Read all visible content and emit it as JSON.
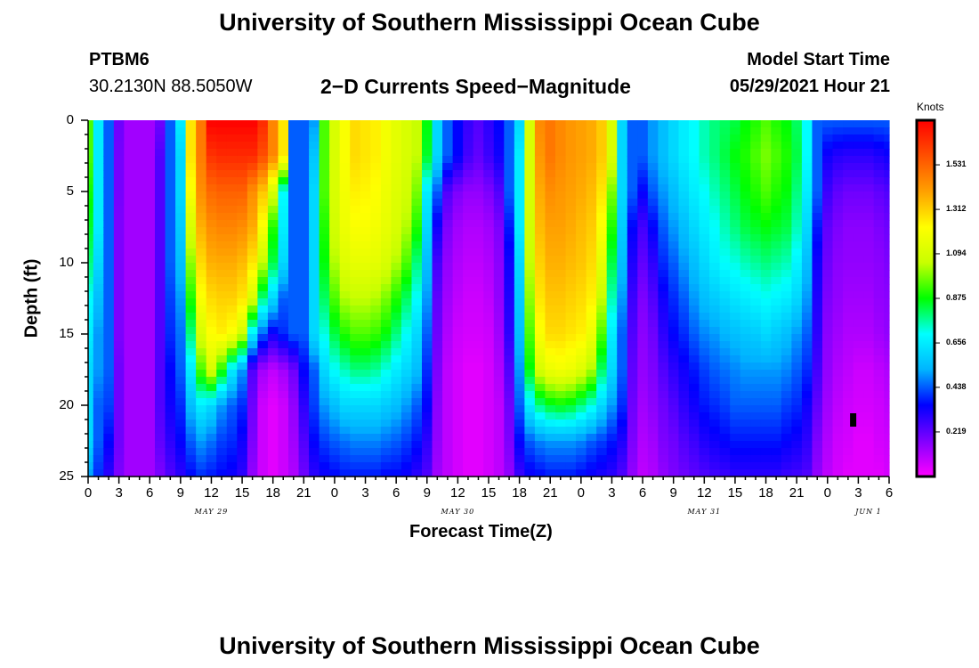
{
  "header": {
    "title_top": "University of Southern Mississippi Ocean Cube",
    "title_bottom": "University of Southern Mississippi Ocean Cube",
    "station_id": "PTBM6",
    "station_coords": "30.2130N  88.5050W",
    "plot_title": "2−D Currents Speed−Magnitude",
    "model_start_label": "Model Start Time",
    "model_start_value": "05/29/2021 Hour 21"
  },
  "colorbar": {
    "unit_label": "Knots",
    "tick_labels": [
      "1.531",
      "1.312",
      "1.094",
      "0.875",
      "0.656",
      "0.438",
      "0.219"
    ],
    "tick_values": [
      1.531,
      1.312,
      1.094,
      0.875,
      0.656,
      0.438,
      0.219
    ],
    "min": 0,
    "max": 1.75,
    "colors": [
      "#ff00ff",
      "#8000ff",
      "#0000ff",
      "#00b4ff",
      "#00ffff",
      "#00ff00",
      "#c8ff00",
      "#ffff00",
      "#ffa000",
      "#ff5000",
      "#ff0000"
    ]
  },
  "chart_data": {
    "type": "heatmap",
    "title": "2−D Currents Speed−Magnitude",
    "xlabel": "Forecast Time(Z)",
    "ylabel": "Depth (ft)",
    "x_unit": "hours from 05/29 00Z",
    "xlim": [
      0,
      78
    ],
    "ylim": [
      0,
      25
    ],
    "y_inverted": true,
    "y_ticks": [
      "0",
      "5",
      "10",
      "15",
      "20",
      "25"
    ],
    "x_tick_labels": [
      "0",
      "3",
      "6",
      "9",
      "12",
      "15",
      "18",
      "21",
      "0",
      "3",
      "6",
      "9",
      "12",
      "15",
      "18",
      "21",
      "0",
      "3",
      "6",
      "9",
      "12",
      "15",
      "18",
      "21",
      "0",
      "3",
      "6"
    ],
    "date_labels": [
      {
        "label": "MAY 29",
        "hour": 12
      },
      {
        "label": "MAY 30",
        "hour": 36
      },
      {
        "label": "MAY 31",
        "hour": 60
      },
      {
        "label": "JUN 1",
        "hour": 76
      }
    ],
    "depths_ft": [
      0,
      2.5,
      5,
      7.5,
      10,
      12.5,
      15,
      17.5,
      20,
      22.5,
      25
    ],
    "hours": [
      0,
      1,
      2,
      3,
      4,
      5,
      6,
      7,
      8,
      9,
      10,
      11,
      12,
      13,
      14,
      15,
      16,
      17,
      18,
      19,
      20,
      21,
      22,
      23,
      24,
      25,
      26,
      27,
      28,
      29,
      30,
      31,
      32,
      33,
      34,
      35,
      36,
      37,
      38,
      39,
      40,
      41,
      42,
      43,
      44,
      45,
      46,
      47,
      48,
      49,
      50,
      51,
      52,
      53,
      54,
      55,
      56,
      57,
      58,
      59,
      60,
      61,
      62,
      63,
      64,
      65,
      66,
      67,
      68,
      69,
      70,
      71,
      72,
      73,
      74,
      75,
      76,
      77,
      78
    ],
    "speed_knots": [
      [
        0.94,
        0.66,
        0.44,
        0.2,
        0.13,
        0.13,
        0.13,
        0.2,
        0.44,
        0.66,
        1.27,
        1.49,
        1.75,
        1.75,
        1.75,
        1.75,
        1.75,
        1.66,
        1.46,
        1.27,
        0.44,
        0.44,
        0.5,
        0.94,
        1.1,
        1.21,
        1.29,
        1.27,
        1.25,
        1.19,
        1.14,
        1.1,
        1.05,
        0.87,
        0.61,
        0.44,
        0.35,
        0.28,
        0.24,
        0.29,
        0.35,
        0.44,
        0.61,
        1.1,
        1.45,
        1.49,
        1.45,
        1.42,
        1.4,
        1.38,
        1.32,
        1.1,
        0.61,
        0.44,
        0.44,
        0.5,
        0.55,
        0.61,
        0.66,
        0.7,
        0.75,
        0.79,
        0.81,
        0.83,
        0.87,
        0.9,
        0.94,
        0.9,
        0.87,
        0.81,
        0.7,
        0.44,
        0.44,
        0.44,
        0.44,
        0.44,
        0.44,
        0.44,
        0.44
      ],
      [
        0.94,
        0.66,
        0.44,
        0.19,
        0.13,
        0.13,
        0.13,
        0.24,
        0.44,
        0.61,
        1.27,
        1.48,
        1.64,
        1.66,
        1.66,
        1.66,
        1.66,
        1.58,
        1.46,
        1.27,
        0.44,
        0.44,
        0.57,
        0.94,
        1.1,
        1.21,
        1.29,
        1.27,
        1.25,
        1.19,
        1.14,
        1.1,
        1.05,
        0.85,
        0.61,
        0.44,
        0.35,
        0.26,
        0.22,
        0.27,
        0.33,
        0.44,
        0.66,
        1.1,
        1.42,
        1.49,
        1.45,
        1.42,
        1.4,
        1.38,
        1.32,
        1.1,
        0.61,
        0.44,
        0.44,
        0.5,
        0.55,
        0.61,
        0.66,
        0.7,
        0.75,
        0.79,
        0.83,
        0.87,
        0.9,
        0.94,
        0.98,
        0.94,
        0.9,
        0.83,
        0.7,
        0.44,
        0.33,
        0.3,
        0.29,
        0.29,
        0.29,
        0.31,
        0.33
      ],
      [
        0.89,
        0.66,
        0.44,
        0.19,
        0.13,
        0.13,
        0.13,
        0.24,
        0.44,
        0.61,
        1.21,
        1.44,
        1.52,
        1.54,
        1.54,
        1.54,
        1.44,
        1.33,
        1.1,
        0.7,
        0.44,
        0.44,
        0.61,
        0.94,
        1.1,
        1.19,
        1.25,
        1.24,
        1.22,
        1.17,
        1.12,
        1.08,
        0.98,
        0.66,
        0.44,
        0.24,
        0.18,
        0.15,
        0.15,
        0.18,
        0.24,
        0.44,
        0.66,
        1.1,
        1.38,
        1.44,
        1.42,
        1.4,
        1.38,
        1.35,
        1.27,
        0.98,
        0.61,
        0.44,
        0.35,
        0.44,
        0.5,
        0.55,
        0.61,
        0.66,
        0.7,
        0.75,
        0.79,
        0.83,
        0.87,
        0.9,
        0.94,
        0.9,
        0.87,
        0.79,
        0.66,
        0.44,
        0.27,
        0.22,
        0.2,
        0.2,
        0.2,
        0.22,
        0.24
      ],
      [
        0.85,
        0.66,
        0.44,
        0.18,
        0.13,
        0.13,
        0.13,
        0.24,
        0.44,
        0.58,
        1.1,
        1.37,
        1.44,
        1.46,
        1.46,
        1.44,
        1.38,
        1.21,
        0.9,
        0.66,
        0.44,
        0.44,
        0.61,
        0.9,
        1.08,
        1.17,
        1.21,
        1.21,
        1.19,
        1.15,
        1.1,
        1.03,
        0.9,
        0.61,
        0.33,
        0.18,
        0.13,
        0.11,
        0.11,
        0.13,
        0.18,
        0.37,
        0.66,
        1.08,
        1.35,
        1.4,
        1.4,
        1.38,
        1.35,
        1.32,
        1.21,
        0.9,
        0.58,
        0.35,
        0.26,
        0.35,
        0.44,
        0.5,
        0.55,
        0.61,
        0.66,
        0.7,
        0.75,
        0.79,
        0.83,
        0.85,
        0.87,
        0.85,
        0.83,
        0.75,
        0.61,
        0.37,
        0.22,
        0.18,
        0.16,
        0.16,
        0.16,
        0.18,
        0.2
      ],
      [
        0.79,
        0.61,
        0.44,
        0.18,
        0.13,
        0.13,
        0.13,
        0.24,
        0.44,
        0.55,
        1.0,
        1.29,
        1.37,
        1.38,
        1.38,
        1.35,
        1.27,
        1.05,
        0.83,
        0.61,
        0.44,
        0.44,
        0.61,
        0.87,
        1.03,
        1.12,
        1.15,
        1.15,
        1.14,
        1.1,
        1.03,
        0.94,
        0.79,
        0.55,
        0.26,
        0.15,
        0.11,
        0.09,
        0.09,
        0.11,
        0.16,
        0.33,
        0.61,
        1.05,
        1.31,
        1.37,
        1.37,
        1.35,
        1.33,
        1.29,
        1.14,
        0.83,
        0.55,
        0.31,
        0.22,
        0.29,
        0.39,
        0.44,
        0.5,
        0.55,
        0.61,
        0.66,
        0.7,
        0.72,
        0.75,
        0.77,
        0.79,
        0.77,
        0.75,
        0.68,
        0.55,
        0.33,
        0.2,
        0.16,
        0.15,
        0.15,
        0.15,
        0.16,
        0.18
      ],
      [
        0.7,
        0.55,
        0.44,
        0.18,
        0.13,
        0.13,
        0.13,
        0.24,
        0.41,
        0.5,
        0.9,
        1.21,
        1.29,
        1.31,
        1.31,
        1.27,
        1.1,
        0.79,
        0.61,
        0.44,
        0.44,
        0.44,
        0.61,
        0.81,
        0.94,
        1.03,
        1.05,
        1.05,
        1.03,
        0.98,
        0.9,
        0.81,
        0.7,
        0.5,
        0.22,
        0.13,
        0.09,
        0.07,
        0.07,
        0.09,
        0.15,
        0.31,
        0.58,
        1.0,
        1.27,
        1.33,
        1.33,
        1.31,
        1.29,
        1.25,
        1.05,
        0.75,
        0.5,
        0.27,
        0.18,
        0.24,
        0.33,
        0.39,
        0.44,
        0.5,
        0.55,
        0.58,
        0.61,
        0.64,
        0.66,
        0.68,
        0.7,
        0.68,
        0.66,
        0.61,
        0.5,
        0.31,
        0.18,
        0.15,
        0.13,
        0.13,
        0.13,
        0.15,
        0.16
      ],
      [
        0.66,
        0.5,
        0.44,
        0.18,
        0.13,
        0.13,
        0.13,
        0.24,
        0.39,
        0.46,
        0.79,
        1.1,
        1.22,
        1.25,
        1.21,
        1.08,
        0.66,
        0.44,
        0.33,
        0.39,
        0.44,
        0.44,
        0.61,
        0.72,
        0.83,
        0.9,
        0.94,
        0.94,
        0.92,
        0.87,
        0.79,
        0.7,
        0.61,
        0.44,
        0.2,
        0.11,
        0.07,
        0.06,
        0.06,
        0.07,
        0.13,
        0.29,
        0.55,
        0.94,
        1.21,
        1.29,
        1.29,
        1.27,
        1.25,
        1.17,
        0.94,
        0.66,
        0.44,
        0.24,
        0.16,
        0.2,
        0.29,
        0.35,
        0.39,
        0.44,
        0.48,
        0.5,
        0.53,
        0.55,
        0.57,
        0.58,
        0.61,
        0.58,
        0.55,
        0.5,
        0.44,
        0.29,
        0.16,
        0.13,
        0.11,
        0.11,
        0.11,
        0.13,
        0.15
      ],
      [
        0.61,
        0.5,
        0.44,
        0.2,
        0.13,
        0.13,
        0.13,
        0.24,
        0.35,
        0.44,
        0.66,
        0.94,
        1.1,
        0.9,
        0.66,
        0.5,
        0.24,
        0.13,
        0.09,
        0.13,
        0.2,
        0.35,
        0.44,
        0.61,
        0.7,
        0.75,
        0.79,
        0.79,
        0.77,
        0.72,
        0.66,
        0.61,
        0.55,
        0.39,
        0.18,
        0.09,
        0.06,
        0.04,
        0.04,
        0.06,
        0.11,
        0.24,
        0.5,
        0.87,
        1.1,
        1.17,
        1.19,
        1.17,
        1.12,
        1.03,
        0.81,
        0.61,
        0.44,
        0.22,
        0.15,
        0.18,
        0.24,
        0.29,
        0.33,
        0.37,
        0.41,
        0.44,
        0.46,
        0.48,
        0.5,
        0.5,
        0.5,
        0.5,
        0.48,
        0.44,
        0.39,
        0.26,
        0.15,
        0.11,
        0.09,
        0.07,
        0.07,
        0.09,
        0.11
      ],
      [
        0.61,
        0.44,
        0.41,
        0.2,
        0.13,
        0.13,
        0.13,
        0.24,
        0.33,
        0.39,
        0.55,
        0.66,
        0.61,
        0.5,
        0.44,
        0.39,
        0.2,
        0.07,
        0.04,
        0.07,
        0.15,
        0.29,
        0.41,
        0.5,
        0.55,
        0.61,
        0.61,
        0.61,
        0.61,
        0.58,
        0.55,
        0.5,
        0.44,
        0.35,
        0.16,
        0.09,
        0.06,
        0.04,
        0.04,
        0.06,
        0.09,
        0.2,
        0.44,
        0.66,
        0.79,
        0.85,
        0.87,
        0.85,
        0.79,
        0.72,
        0.61,
        0.5,
        0.39,
        0.2,
        0.13,
        0.16,
        0.2,
        0.24,
        0.29,
        0.33,
        0.37,
        0.39,
        0.41,
        0.44,
        0.44,
        0.44,
        0.44,
        0.44,
        0.41,
        0.39,
        0.33,
        0.22,
        0.13,
        0.09,
        0.07,
        0.06,
        0.06,
        0.07,
        0.09
      ],
      [
        0.61,
        0.44,
        0.35,
        0.2,
        0.13,
        0.13,
        0.13,
        0.22,
        0.29,
        0.35,
        0.44,
        0.5,
        0.46,
        0.41,
        0.39,
        0.33,
        0.18,
        0.07,
        0.04,
        0.07,
        0.13,
        0.24,
        0.35,
        0.41,
        0.44,
        0.46,
        0.48,
        0.48,
        0.48,
        0.46,
        0.44,
        0.41,
        0.37,
        0.29,
        0.15,
        0.09,
        0.06,
        0.04,
        0.04,
        0.06,
        0.09,
        0.18,
        0.35,
        0.44,
        0.48,
        0.5,
        0.5,
        0.5,
        0.48,
        0.44,
        0.41,
        0.37,
        0.31,
        0.18,
        0.11,
        0.13,
        0.18,
        0.2,
        0.24,
        0.27,
        0.31,
        0.33,
        0.35,
        0.37,
        0.37,
        0.37,
        0.37,
        0.37,
        0.35,
        0.33,
        0.29,
        0.18,
        0.11,
        0.07,
        0.06,
        0.04,
        0.04,
        0.06,
        0.07
      ],
      [
        0.5,
        0.39,
        0.29,
        0.18,
        0.13,
        0.13,
        0.13,
        0.18,
        0.24,
        0.29,
        0.35,
        0.39,
        0.37,
        0.35,
        0.33,
        0.29,
        0.15,
        0.07,
        0.04,
        0.07,
        0.11,
        0.2,
        0.29,
        0.33,
        0.35,
        0.37,
        0.37,
        0.37,
        0.37,
        0.35,
        0.35,
        0.33,
        0.29,
        0.24,
        0.13,
        0.09,
        0.06,
        0.04,
        0.04,
        0.06,
        0.09,
        0.15,
        0.27,
        0.33,
        0.35,
        0.37,
        0.37,
        0.37,
        0.35,
        0.33,
        0.31,
        0.29,
        0.24,
        0.15,
        0.09,
        0.11,
        0.15,
        0.18,
        0.2,
        0.22,
        0.24,
        0.26,
        0.27,
        0.29,
        0.29,
        0.29,
        0.29,
        0.29,
        0.27,
        0.26,
        0.24,
        0.15,
        0.09,
        0.06,
        0.04,
        0.04,
        0.04,
        0.04,
        0.06
      ]
    ]
  },
  "annotations": {
    "marker_hour": 74.5,
    "marker_depth_ft": 21
  }
}
